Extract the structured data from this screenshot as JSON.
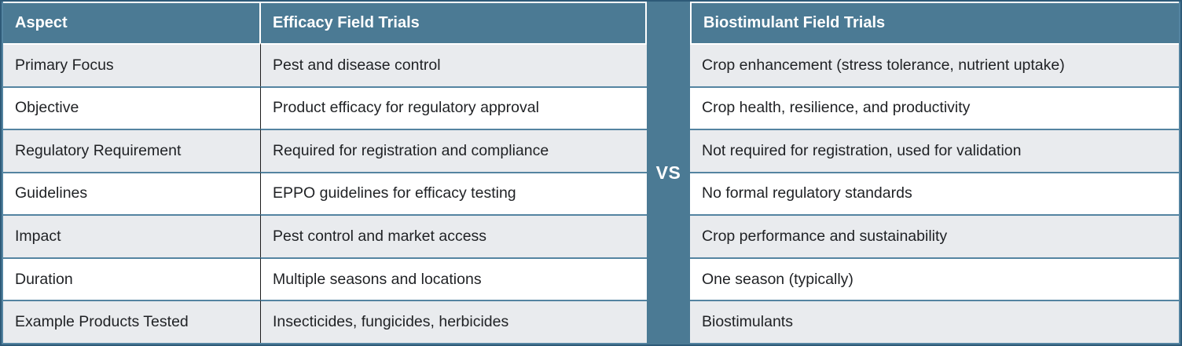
{
  "vs_label": "VS",
  "left_table": {
    "headers": {
      "aspect": "Aspect",
      "efficacy": "Efficacy Field Trials"
    }
  },
  "right_table": {
    "headers": {
      "biostimulant": "Biostimulant Field Trials"
    }
  },
  "rows": [
    {
      "aspect": "Primary Focus",
      "efficacy": "Pest and disease control",
      "biostimulant": "Crop enhancement (stress tolerance, nutrient uptake)"
    },
    {
      "aspect": "Objective",
      "efficacy": "Product efficacy for regulatory approval",
      "biostimulant": "Crop health, resilience, and productivity"
    },
    {
      "aspect": "Regulatory Requirement",
      "efficacy": "Required for registration and compliance",
      "biostimulant": "Not required for registration, used for validation"
    },
    {
      "aspect": "Guidelines",
      "efficacy": "EPPO guidelines for efficacy testing",
      "biostimulant": "No formal regulatory standards"
    },
    {
      "aspect": "Impact",
      "efficacy": "Pest control and market access",
      "biostimulant": "Crop performance and sustainability"
    },
    {
      "aspect": "Duration",
      "efficacy": "Multiple seasons and locations",
      "biostimulant": "One season (typically)"
    },
    {
      "aspect": "Example Products Tested",
      "efficacy": "Insecticides, fungicides, herbicides",
      "biostimulant": "Biostimulants"
    }
  ],
  "colors": {
    "header_bg": "#4b7a94",
    "band_bg": "#4b7a94",
    "row_alt_bg": "#e9ebee",
    "row_bg": "#ffffff",
    "divider": "#5484a1",
    "outer_border": "#2e5a78",
    "column_separator": "#1d1d1d",
    "header_text": "#ffffff",
    "body_text": "#1f2124"
  },
  "chart_data": {
    "type": "table",
    "columns": [
      "Aspect",
      "Efficacy Field Trials",
      "Biostimulant Field Trials"
    ],
    "rows": [
      [
        "Primary Focus",
        "Pest and disease control",
        "Crop enhancement (stress tolerance, nutrient uptake)"
      ],
      [
        "Objective",
        "Product efficacy for regulatory approval",
        "Crop health, resilience, and productivity"
      ],
      [
        "Regulatory Requirement",
        "Required for registration and compliance",
        "Not required for registration, used for validation"
      ],
      [
        "Guidelines",
        "EPPO guidelines for efficacy testing",
        "No formal regulatory standards"
      ],
      [
        "Impact",
        "Pest control and market access",
        "Crop performance and sustainability"
      ],
      [
        "Duration",
        "Multiple seasons and locations",
        "One season (typically)"
      ],
      [
        "Example Products Tested",
        "Insecticides, fungicides, herbicides",
        "Biostimulants"
      ]
    ],
    "layout_hints": {
      "divider_label": "VS",
      "zebra_striping": true,
      "grid": "on"
    }
  }
}
